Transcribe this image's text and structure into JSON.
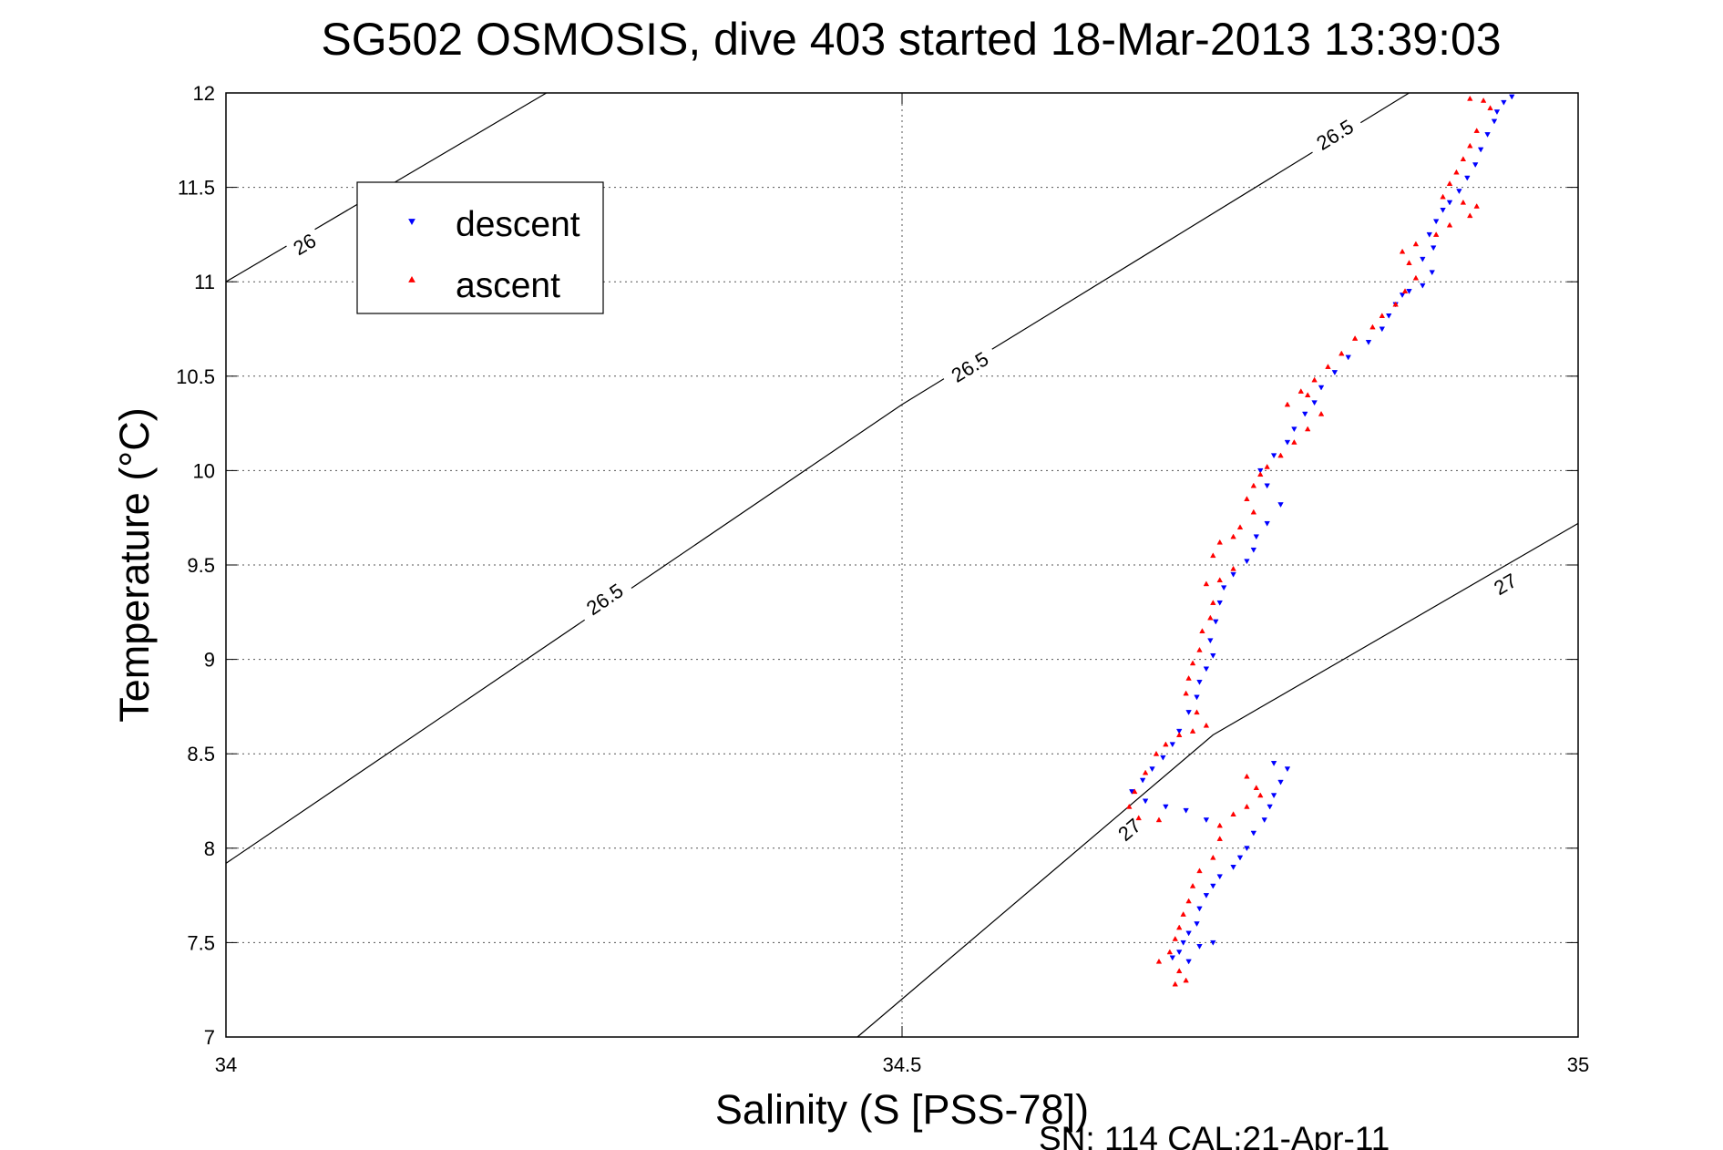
{
  "chart_data": {
    "type": "scatter",
    "title": "SG502 OSMOSIS, dive 403 started 18-Mar-2013 13:39:03",
    "xlabel": "Salinity (S [PSS-78])",
    "ylabel": "Temperature (°C)",
    "footer": "SN: 114  CAL:21-Apr-11",
    "xlim": [
      34,
      35
    ],
    "ylim": [
      7,
      12
    ],
    "grid": true,
    "legend_position": "top-left",
    "x_ticks": [
      34,
      34.5,
      35
    ],
    "x_tick_labels": [
      "34",
      "34.5",
      "35"
    ],
    "y_ticks": [
      7,
      7.5,
      8,
      8.5,
      9,
      9.5,
      10,
      10.5,
      11,
      11.5,
      12
    ],
    "y_tick_labels": [
      "7",
      "7.5",
      "8",
      "8.5",
      "9",
      "9.5",
      "10",
      "10.5",
      "11",
      "11.5",
      "12"
    ],
    "series": [
      {
        "name": "descent",
        "color": "#0000ff",
        "marker": "triangle-down",
        "points": [
          [
            34.951,
            11.98
          ],
          [
            34.945,
            11.95
          ],
          [
            34.94,
            11.9
          ],
          [
            34.938,
            11.85
          ],
          [
            34.933,
            11.78
          ],
          [
            34.928,
            11.7
          ],
          [
            34.924,
            11.62
          ],
          [
            34.918,
            11.55
          ],
          [
            34.912,
            11.48
          ],
          [
            34.905,
            11.42
          ],
          [
            34.9,
            11.38
          ],
          [
            34.895,
            11.32
          ],
          [
            34.89,
            11.25
          ],
          [
            34.893,
            11.18
          ],
          [
            34.885,
            11.12
          ],
          [
            34.892,
            11.05
          ],
          [
            34.885,
            10.98
          ],
          [
            34.875,
            10.95
          ],
          [
            34.87,
            10.93
          ],
          [
            34.865,
            10.88
          ],
          [
            34.86,
            10.82
          ],
          [
            34.855,
            10.75
          ],
          [
            34.845,
            10.68
          ],
          [
            34.83,
            10.6
          ],
          [
            34.82,
            10.52
          ],
          [
            34.81,
            10.44
          ],
          [
            34.805,
            10.36
          ],
          [
            34.798,
            10.3
          ],
          [
            34.79,
            10.22
          ],
          [
            34.785,
            10.15
          ],
          [
            34.775,
            10.08
          ],
          [
            34.765,
            10.0
          ],
          [
            34.77,
            9.92
          ],
          [
            34.78,
            9.82
          ],
          [
            34.77,
            9.72
          ],
          [
            34.762,
            9.65
          ],
          [
            34.76,
            9.58
          ],
          [
            34.755,
            9.52
          ],
          [
            34.745,
            9.45
          ],
          [
            34.738,
            9.38
          ],
          [
            34.735,
            9.3
          ],
          [
            34.732,
            9.2
          ],
          [
            34.728,
            9.1
          ],
          [
            34.73,
            9.02
          ],
          [
            34.725,
            8.95
          ],
          [
            34.72,
            8.88
          ],
          [
            34.718,
            8.8
          ],
          [
            34.712,
            8.72
          ],
          [
            34.705,
            8.62
          ],
          [
            34.7,
            8.55
          ],
          [
            34.693,
            8.48
          ],
          [
            34.685,
            8.42
          ],
          [
            34.678,
            8.36
          ],
          [
            34.67,
            8.3
          ],
          [
            34.68,
            8.25
          ],
          [
            34.695,
            8.22
          ],
          [
            34.71,
            8.2
          ],
          [
            34.725,
            8.15
          ],
          [
            34.775,
            8.45
          ],
          [
            34.785,
            8.42
          ],
          [
            34.78,
            8.35
          ],
          [
            34.775,
            8.28
          ],
          [
            34.772,
            8.22
          ],
          [
            34.768,
            8.15
          ],
          [
            34.76,
            8.08
          ],
          [
            34.755,
            8.0
          ],
          [
            34.75,
            7.95
          ],
          [
            34.745,
            7.9
          ],
          [
            34.735,
            7.85
          ],
          [
            34.73,
            7.8
          ],
          [
            34.725,
            7.75
          ],
          [
            34.72,
            7.68
          ],
          [
            34.718,
            7.6
          ],
          [
            34.712,
            7.55
          ],
          [
            34.708,
            7.5
          ],
          [
            34.705,
            7.45
          ],
          [
            34.7,
            7.42
          ],
          [
            34.712,
            7.4
          ],
          [
            34.72,
            7.48
          ],
          [
            34.73,
            7.5
          ]
        ]
      },
      {
        "name": "ascent",
        "color": "#ff0000",
        "marker": "triangle-up",
        "points": [
          [
            34.92,
            11.97
          ],
          [
            34.93,
            11.96
          ],
          [
            34.935,
            11.92
          ],
          [
            34.925,
            11.8
          ],
          [
            34.92,
            11.72
          ],
          [
            34.915,
            11.65
          ],
          [
            34.91,
            11.58
          ],
          [
            34.905,
            11.52
          ],
          [
            34.9,
            11.45
          ],
          [
            34.915,
            11.42
          ],
          [
            34.925,
            11.4
          ],
          [
            34.92,
            11.35
          ],
          [
            34.905,
            11.3
          ],
          [
            34.895,
            11.25
          ],
          [
            34.88,
            11.2
          ],
          [
            34.87,
            11.16
          ],
          [
            34.875,
            11.1
          ],
          [
            34.88,
            11.02
          ],
          [
            34.872,
            10.95
          ],
          [
            34.865,
            10.88
          ],
          [
            34.855,
            10.82
          ],
          [
            34.848,
            10.76
          ],
          [
            34.835,
            10.7
          ],
          [
            34.825,
            10.62
          ],
          [
            34.815,
            10.55
          ],
          [
            34.805,
            10.48
          ],
          [
            34.795,
            10.42
          ],
          [
            34.785,
            10.35
          ],
          [
            34.8,
            10.4
          ],
          [
            34.81,
            10.3
          ],
          [
            34.8,
            10.22
          ],
          [
            34.79,
            10.15
          ],
          [
            34.78,
            10.08
          ],
          [
            34.77,
            10.02
          ],
          [
            34.765,
            9.98
          ],
          [
            34.76,
            9.92
          ],
          [
            34.755,
            9.85
          ],
          [
            34.76,
            9.78
          ],
          [
            34.75,
            9.7
          ],
          [
            34.745,
            9.65
          ],
          [
            34.735,
            9.62
          ],
          [
            34.73,
            9.55
          ],
          [
            34.745,
            9.48
          ],
          [
            34.735,
            9.42
          ],
          [
            34.725,
            9.4
          ],
          [
            34.73,
            9.3
          ],
          [
            34.728,
            9.22
          ],
          [
            34.722,
            9.15
          ],
          [
            34.72,
            9.05
          ],
          [
            34.715,
            8.98
          ],
          [
            34.712,
            8.9
          ],
          [
            34.71,
            8.82
          ],
          [
            34.718,
            8.72
          ],
          [
            34.725,
            8.65
          ],
          [
            34.715,
            8.62
          ],
          [
            34.705,
            8.6
          ],
          [
            34.695,
            8.55
          ],
          [
            34.688,
            8.5
          ],
          [
            34.68,
            8.4
          ],
          [
            34.672,
            8.3
          ],
          [
            34.668,
            8.22
          ],
          [
            34.675,
            8.16
          ],
          [
            34.69,
            8.15
          ],
          [
            34.755,
            8.38
          ],
          [
            34.762,
            8.32
          ],
          [
            34.765,
            8.28
          ],
          [
            34.755,
            8.22
          ],
          [
            34.745,
            8.18
          ],
          [
            34.735,
            8.12
          ],
          [
            34.735,
            8.05
          ],
          [
            34.73,
            7.95
          ],
          [
            34.72,
            7.88
          ],
          [
            34.715,
            7.8
          ],
          [
            34.712,
            7.72
          ],
          [
            34.708,
            7.65
          ],
          [
            34.705,
            7.58
          ],
          [
            34.702,
            7.52
          ],
          [
            34.698,
            7.45
          ],
          [
            34.69,
            7.4
          ],
          [
            34.705,
            7.35
          ],
          [
            34.71,
            7.3
          ],
          [
            34.702,
            7.28
          ]
        ]
      }
    ],
    "isopycnals": [
      {
        "label": "26",
        "points": [
          [
            34.0,
            11.0
          ],
          [
            34.237,
            12.0
          ]
        ],
        "label_at": [
          34.058,
          11.2
        ]
      },
      {
        "label": "26.5",
        "points": [
          [
            34.0,
            7.92
          ],
          [
            34.5,
            10.35
          ],
          [
            34.875,
            12.0
          ]
        ],
        "label_at": [
          34.28,
          9.32
        ]
      },
      {
        "label": "26.5",
        "points": [
          [
            34.0,
            7.92
          ],
          [
            34.5,
            10.35
          ],
          [
            34.875,
            12.0
          ]
        ],
        "label_at": [
          34.55,
          10.55
        ]
      },
      {
        "label": "26.5",
        "points": [
          [
            34.0,
            7.92
          ],
          [
            34.5,
            10.35
          ],
          [
            34.875,
            12.0
          ]
        ],
        "label_at": [
          34.82,
          11.78
        ]
      },
      {
        "label": "27",
        "points": [
          [
            34.467,
            7.0
          ],
          [
            34.73,
            8.6
          ],
          [
            35.0,
            9.72
          ]
        ],
        "label_at": [
          34.668,
          8.1
        ]
      },
      {
        "label": "27",
        "points": [
          [
            34.467,
            7.0
          ],
          [
            34.73,
            8.6
          ],
          [
            35.0,
            9.72
          ]
        ],
        "label_at": [
          34.946,
          9.4
        ]
      }
    ]
  }
}
